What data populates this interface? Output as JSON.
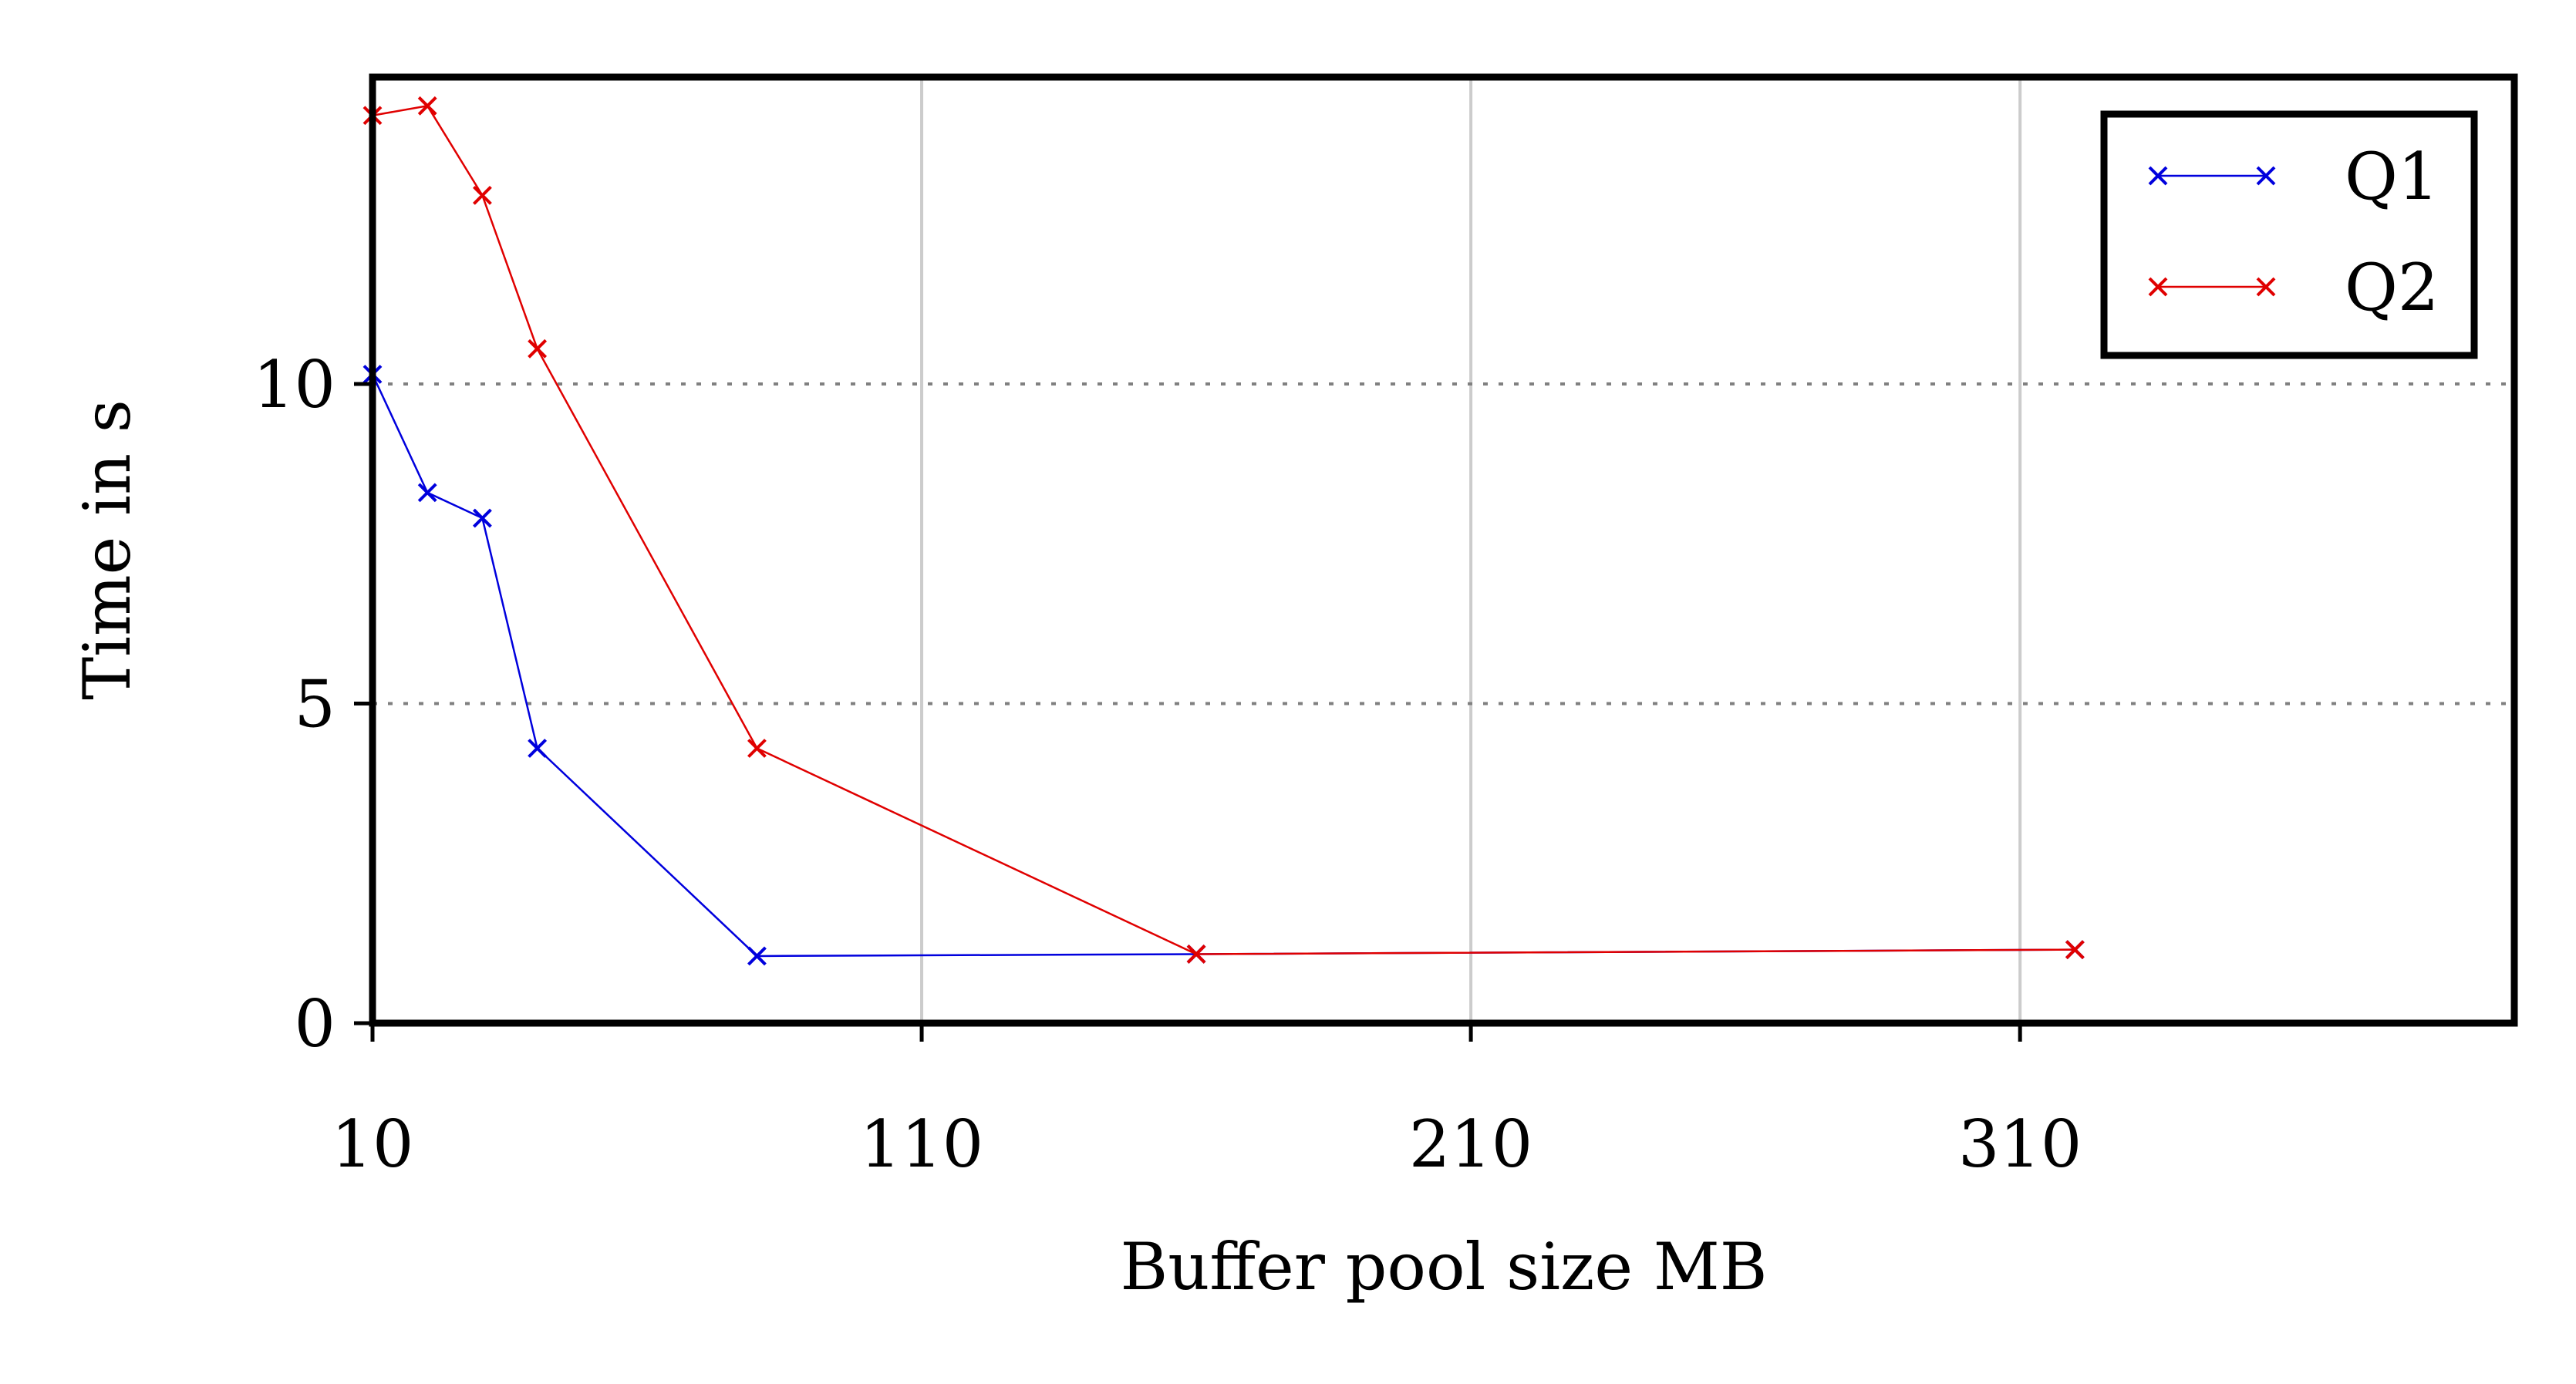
{
  "chart_data": {
    "type": "line",
    "title": "",
    "xlabel": "Buffer pool size MB",
    "ylabel": "Time in s",
    "xlim": [
      10,
      400
    ],
    "ylim": [
      0,
      14.8
    ],
    "x_ticks": [
      10,
      110,
      210,
      310
    ],
    "x_tick_labels": [
      "10",
      "110",
      "210",
      "310"
    ],
    "y_ticks": [
      0,
      5,
      10
    ],
    "y_tick_labels": [
      "0",
      "5",
      "10"
    ],
    "y_grid": "dotted",
    "x_grid": "solid",
    "legend_position": "top-right",
    "series": [
      {
        "name": "Q1",
        "color": "#0000dd",
        "marker": "x",
        "x": [
          10,
          20,
          30,
          40,
          80,
          160,
          320
        ],
        "y": [
          10.15,
          8.3,
          7.9,
          4.3,
          1.05,
          1.08,
          1.15
        ]
      },
      {
        "name": "Q2",
        "color": "#e00000",
        "marker": "x",
        "x": [
          10,
          20,
          30,
          40,
          80,
          160,
          320
        ],
        "y": [
          14.2,
          14.35,
          12.95,
          10.55,
          4.3,
          1.08,
          1.15
        ]
      }
    ]
  }
}
